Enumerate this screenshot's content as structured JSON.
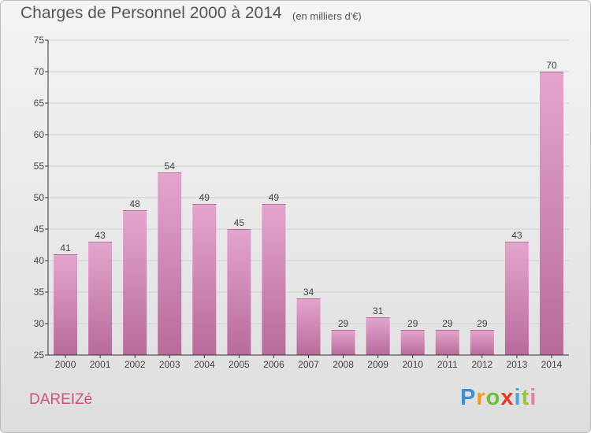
{
  "header": {
    "title": "Charges de Personnel 2000 à 2014",
    "subtitle": "(en milliers d'€)"
  },
  "footer": {
    "commune": "DAREIZé",
    "logo_text": "Proxiti"
  },
  "colors": {
    "bar_top": "#e4a5cd",
    "bar_bottom": "#b86b9a",
    "grid": "#d0d0d0",
    "axis": "#333333",
    "commune": "#d0507a"
  },
  "chart_data": {
    "type": "bar",
    "title": "Charges de Personnel 2000 à 2014",
    "subtitle": "(en milliers d'€)",
    "categories": [
      "2000",
      "2001",
      "2002",
      "2003",
      "2004",
      "2005",
      "2006",
      "2007",
      "2008",
      "2009",
      "2010",
      "2011",
      "2012",
      "2013",
      "2014"
    ],
    "values": [
      41,
      43,
      48,
      54,
      49,
      45,
      49,
      34,
      29,
      31,
      29,
      29,
      29,
      43,
      70
    ],
    "ylim": [
      25,
      75
    ],
    "yticks": [
      25,
      30,
      35,
      40,
      45,
      50,
      55,
      60,
      65,
      70,
      75
    ],
    "grid": true,
    "show_value_labels": true,
    "xlabel": "",
    "ylabel": ""
  }
}
